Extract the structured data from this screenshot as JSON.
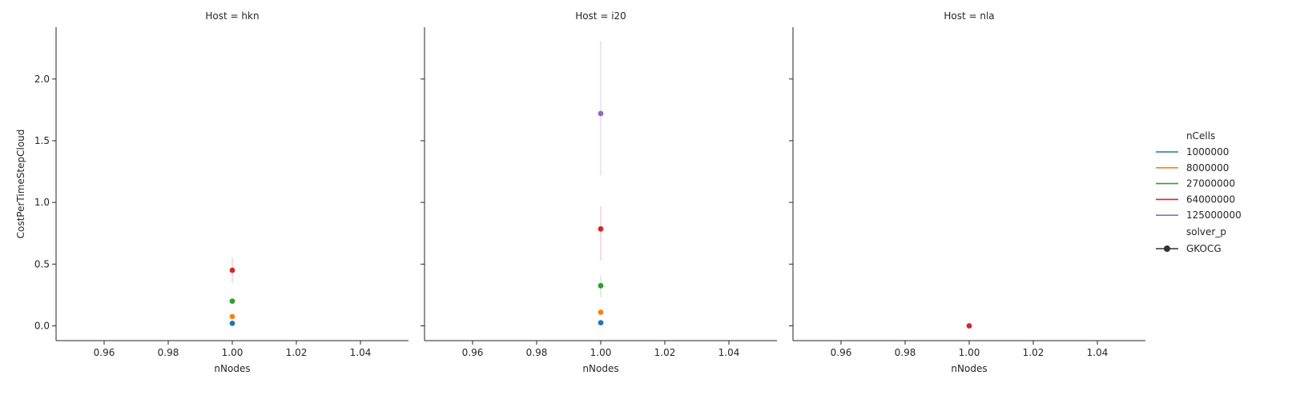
{
  "chart_data": {
    "type": "scatter",
    "facet_variable": "Host",
    "x_label": "nNodes",
    "y_label": "CostPerTimeStepCloud",
    "x_ticks": [
      "0.96",
      "0.98",
      "1.00",
      "1.02",
      "1.04"
    ],
    "x_tick_values": [
      0.96,
      0.98,
      1.0,
      1.02,
      1.04
    ],
    "x_range": [
      0.945,
      1.055
    ],
    "y_ticks": [
      "0.0",
      "0.5",
      "1.0",
      "1.5",
      "2.0"
    ],
    "y_tick_values": [
      0.0,
      0.5,
      1.0,
      1.5,
      2.0
    ],
    "y_range": [
      -0.12,
      2.42
    ],
    "shared_y": true,
    "grid": false,
    "panels": [
      {
        "title": "Host = hkn",
        "points": [
          {
            "ncells": "1000000",
            "x": 1.0,
            "y": 0.02
          },
          {
            "ncells": "8000000",
            "x": 1.0,
            "y": 0.075
          },
          {
            "ncells": "27000000",
            "x": 1.0,
            "y": 0.2
          },
          {
            "ncells": "64000000",
            "x": 1.0,
            "y": 0.45,
            "ci": [
              0.35,
              0.55
            ]
          }
        ]
      },
      {
        "title": "Host = i20",
        "points": [
          {
            "ncells": "1000000",
            "x": 1.0,
            "y": 0.025
          },
          {
            "ncells": "8000000",
            "x": 1.0,
            "y": 0.11
          },
          {
            "ncells": "27000000",
            "x": 1.0,
            "y": 0.325,
            "ci": [
              0.23,
              0.41
            ]
          },
          {
            "ncells": "64000000",
            "x": 1.0,
            "y": 0.785,
            "ci": [
              0.53,
              0.97
            ]
          },
          {
            "ncells": "125000000",
            "x": 1.0,
            "y": 1.72,
            "ci": [
              1.22,
              2.31
            ]
          }
        ]
      },
      {
        "title": "Host = nla",
        "points": [
          {
            "ncells": "64000000",
            "x": 1.0,
            "y": 0.0
          }
        ]
      }
    ],
    "legend": {
      "placement": "right",
      "hue_title": "nCells",
      "hue_entries": [
        {
          "label": "1000000",
          "color": "#1f77b4"
        },
        {
          "label": "8000000",
          "color": "#ff7f0e"
        },
        {
          "label": "27000000",
          "color": "#2ca02c"
        },
        {
          "label": "64000000",
          "color": "#d62728"
        },
        {
          "label": "125000000",
          "color": "#9467bd"
        }
      ],
      "style_title": "solver_p",
      "style_entries": [
        {
          "label": "GKOCG",
          "color": "#333333"
        }
      ]
    }
  }
}
